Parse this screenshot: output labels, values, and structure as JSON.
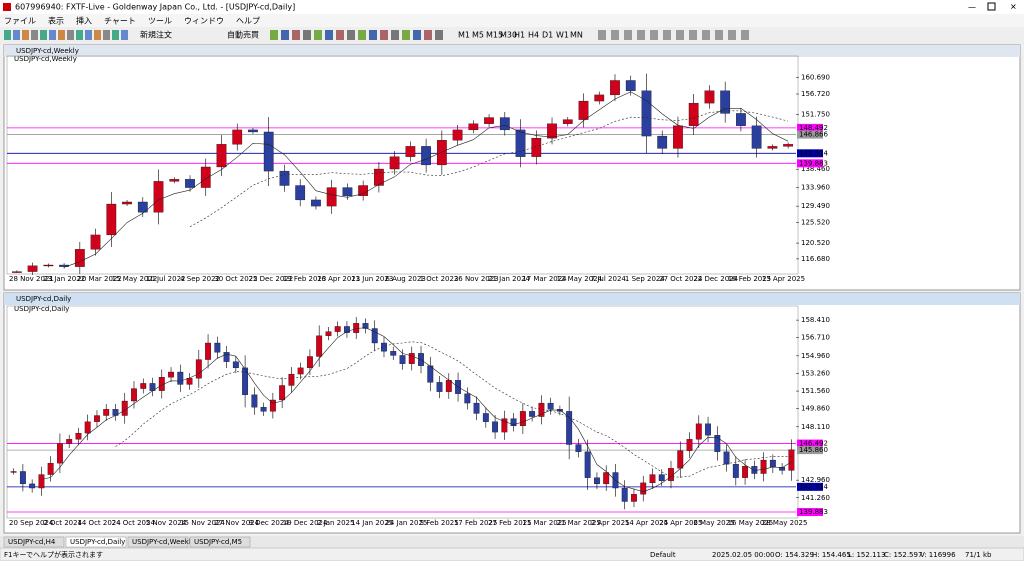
{
  "window_title": "607996940: FXTF-Live - Goldenway Japan Co., Ltd. - [USDJPY-cd,Daily]",
  "menu": [
    "ファイル",
    "表示",
    "挿入",
    "チャート",
    "ツール",
    "ウィンドウ",
    "ヘルプ"
  ],
  "toolbar": {
    "order": "新規注文",
    "auto": "自動売買",
    "timeframes": [
      "M1",
      "M5",
      "M15",
      "M30",
      "H1",
      "H4",
      "D1",
      "W1",
      "MN"
    ]
  },
  "windows": [
    {
      "title": "USDJPY-cd,Weekly",
      "chart_data": {
        "type": "candlestick",
        "label": "USDJPY-cd,Weekly",
        "bull_color": "#d0021b",
        "bear_color": "#2b3f9e",
        "closes": [
          113.6,
          115.0,
          115.2,
          114.8,
          119.0,
          122.5,
          130.0,
          130.5,
          128.0,
          135.5,
          136.0,
          134.0,
          139.0,
          144.5,
          148.0,
          147.5,
          138.0,
          134.5,
          131.0,
          129.5,
          134.0,
          132.0,
          134.5,
          138.5,
          141.5,
          144.0,
          139.5,
          145.5,
          148.0,
          149.5,
          151.0,
          148.0,
          141.5,
          146.0,
          149.5,
          150.5,
          155.0,
          156.5,
          160.0,
          157.5,
          146.5,
          143.5,
          149.0,
          154.5,
          157.5,
          152.0,
          149.0,
          143.5,
          144.0,
          144.5
        ],
        "ylim": [
          113.5,
          164.0
        ],
        "yticks": [
          {
            "value": 160.69,
            "label": "160.690"
          },
          {
            "value": 156.72,
            "label": "156.720"
          },
          {
            "value": 151.75,
            "label": "151.750"
          },
          {
            "value": 138.46,
            "label": "138.460"
          },
          {
            "value": 133.96,
            "label": "133.960"
          },
          {
            "value": 129.49,
            "label": "129.490"
          },
          {
            "value": 125.52,
            "label": "125.520"
          },
          {
            "value": 120.52,
            "label": "120.520"
          },
          {
            "value": 116.68,
            "label": "116.680"
          }
        ],
        "levels": [
          {
            "value": 148.492,
            "color": "#ff00ff"
          },
          {
            "value": 146.866,
            "color": "#999999"
          },
          {
            "value": 142.314,
            "color": "#0000aa"
          },
          {
            "value": 139.883,
            "color": "#ff00ff"
          }
        ],
        "categories": [
          "28 Nov 2021",
          "23 Jan 2022",
          "20 Mar 2022",
          "15 May 2022",
          "10 Jul 2022",
          "4 Sep 2022",
          "30 Oct 2022",
          "25 Dec 2022",
          "19 Feb 2023",
          "16 Apr 2023",
          "11 Jun 2023",
          "6 Aug 2023",
          "1 Oct 2023",
          "26 Nov 2023",
          "21 Jan 2024",
          "17 Mar 2024",
          "12 May 2024",
          "7 Jul 2024",
          "1 Sep 2024",
          "27 Oct 2024",
          "22 Dec 2024",
          "16 Feb 2025",
          "13 Apr 2025"
        ]
      }
    },
    {
      "title": "USDJPY-cd,Daily",
      "chart_data": {
        "type": "candlestick",
        "label": "USDJPY-cd,Daily",
        "bull_color": "#d0021b",
        "bear_color": "#2b3f9e",
        "closes": [
          143.8,
          142.6,
          142.2,
          143.5,
          144.6,
          146.5,
          146.9,
          147.5,
          148.6,
          149.2,
          149.8,
          149.2,
          150.6,
          151.8,
          152.3,
          151.6,
          152.9,
          153.4,
          152.2,
          152.8,
          154.6,
          156.2,
          155.3,
          154.4,
          153.8,
          151.2,
          150.0,
          149.6,
          150.7,
          152.1,
          153.2,
          153.8,
          154.9,
          156.9,
          157.3,
          157.8,
          157.2,
          158.1,
          157.6,
          156.2,
          155.4,
          155.0,
          154.2,
          155.2,
          154.0,
          152.4,
          151.5,
          152.6,
          151.3,
          150.4,
          149.4,
          148.6,
          147.6,
          148.9,
          148.2,
          149.6,
          149.1,
          150.4,
          149.8,
          149.6,
          146.4,
          145.7,
          143.2,
          142.6,
          143.7,
          142.2,
          140.9,
          141.6,
          142.7,
          143.5,
          142.9,
          144.1,
          145.8,
          146.9,
          148.4,
          147.3,
          145.7,
          144.5,
          143.2,
          144.3,
          143.6,
          144.9,
          144.2,
          143.9,
          145.9
        ],
        "ylim": [
          139.5,
          159.0
        ],
        "yticks": [
          {
            "value": 158.41,
            "label": "158.410"
          },
          {
            "value": 156.71,
            "label": "156.710"
          },
          {
            "value": 154.96,
            "label": "154.960"
          },
          {
            "value": 153.26,
            "label": "153.260"
          },
          {
            "value": 151.56,
            "label": "151.560"
          },
          {
            "value": 149.86,
            "label": "149.860"
          },
          {
            "value": 148.11,
            "label": "148.110"
          },
          {
            "value": 142.96,
            "label": "142.960"
          },
          {
            "value": 141.26,
            "label": "141.260"
          }
        ],
        "levels": [
          {
            "value": 146.492,
            "color": "#ff00ff"
          },
          {
            "value": 145.86,
            "label": "145.860",
            "color": "#999999"
          },
          {
            "value": 142.314,
            "color": "#0000aa"
          },
          {
            "value": 139.883,
            "color": "#ff00ff"
          }
        ],
        "categories": [
          "20 Sep 2024",
          "2 Oct 2024",
          "14 Oct 2024",
          "24 Oct 2024",
          "5 Nov 2024",
          "15 Nov 2024",
          "27 Nov 2024",
          "9 Dec 2024",
          "19 Dec 2024",
          "2 Jan 2025",
          "14 Jan 2025",
          "24 Jan 2025",
          "5 Feb 2025",
          "17 Feb 2025",
          "27 Feb 2025",
          "11 Mar 2025",
          "21 Mar 2025",
          "2 Apr 2025",
          "14 Apr 2025",
          "24 Apr 2025",
          "6 May 2025",
          "16 May 2025",
          "28 May 2025"
        ]
      }
    }
  ],
  "tabs": [
    "USDJPY-cd,H4",
    "USDJPY-cd,Daily",
    "USDJPY-cd,Weekly",
    "USDJPY-cd,M5"
  ],
  "status": [
    "F1キーでヘルプが表示されます",
    "Default",
    "2025.02.05 00:00",
    "O: 154.329",
    "H: 154.465",
    "L: 152.113",
    "C: 152.597",
    "V: 116996",
    "71/1 kb"
  ]
}
